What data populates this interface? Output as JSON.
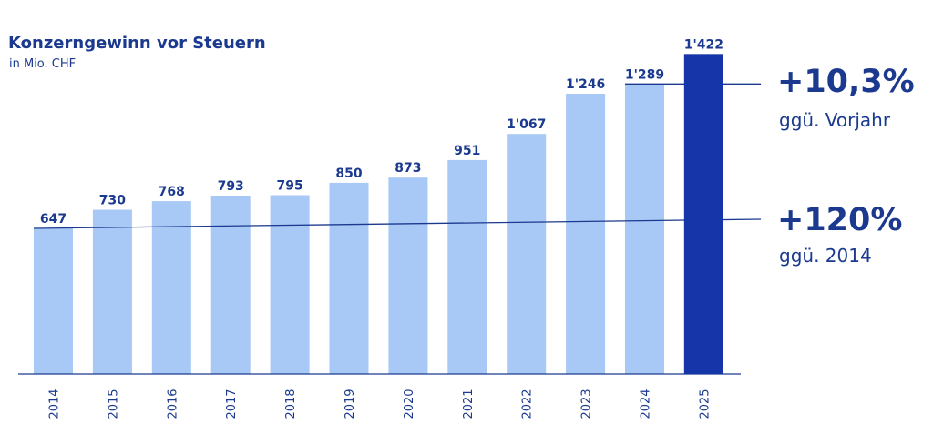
{
  "chart_data": {
    "type": "bar",
    "title": "Konzerngewinn vor Steuern",
    "subtitle": "in Mio. CHF",
    "categories": [
      "2014",
      "2015",
      "2016",
      "2017",
      "2018",
      "2019",
      "2020",
      "2021",
      "2022",
      "2023",
      "2024",
      "2025"
    ],
    "values": [
      647,
      730,
      768,
      793,
      795,
      850,
      873,
      951,
      1067,
      1246,
      1289,
      1422
    ],
    "value_labels": [
      "647",
      "730",
      "768",
      "793",
      "795",
      "850",
      "873",
      "951",
      "1'067",
      "1'246",
      "1'289",
      "1'422"
    ],
    "highlight_index": 11,
    "ylim": [
      0,
      1440
    ],
    "grid": false,
    "annotations": [
      {
        "value": "+10,3%",
        "caption": "ggü. Vorjahr",
        "ref_value": 1289
      },
      {
        "value": "+120%",
        "caption": "ggü. 2014",
        "ref_value": 647
      }
    ],
    "colors": {
      "bar": "#a8c8f5",
      "highlight_bar": "#1535a8",
      "text": "#1b3a8f",
      "axis": "#1b3a8f",
      "ref_line": "#1b3a8f"
    }
  }
}
